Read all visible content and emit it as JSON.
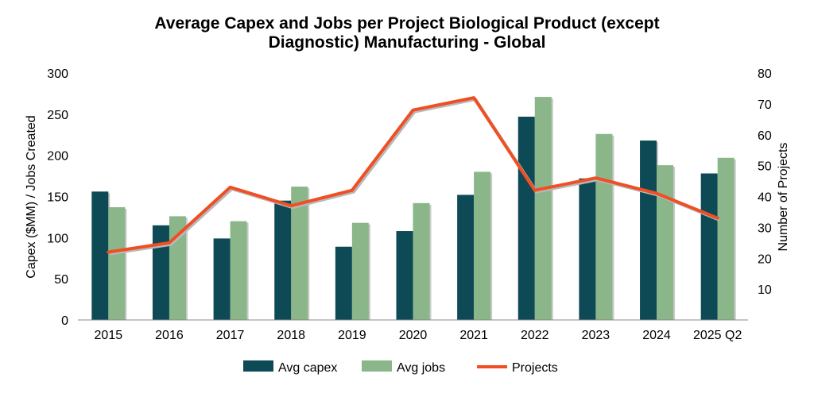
{
  "chart_data": {
    "type": "bar",
    "title_lines": [
      "Average Capex and Jobs per Project Biological Product (except",
      "Diagnostic) Manufacturing - Global"
    ],
    "categories": [
      "2015",
      "2016",
      "2017",
      "2018",
      "2019",
      "2020",
      "2021",
      "2022",
      "2023",
      "2024",
      "2025 Q2"
    ],
    "series": [
      {
        "name": "Avg capex",
        "kind": "bar",
        "axis": "left",
        "color": "#0d4a56",
        "values": [
          156,
          115,
          99,
          145,
          89,
          108,
          152,
          247,
          172,
          218,
          178
        ]
      },
      {
        "name": "Avg jobs",
        "kind": "bar",
        "axis": "left",
        "color": "#8ab68a",
        "values": [
          137,
          126,
          120,
          162,
          118,
          142,
          180,
          271,
          226,
          188,
          197
        ]
      },
      {
        "name": "Projects",
        "kind": "line",
        "axis": "right",
        "color": "#f04e23",
        "values": [
          22,
          25,
          43,
          37,
          42,
          68,
          72,
          42,
          46,
          41,
          33
        ]
      }
    ],
    "ylabel": "Capex ($MM) / Jobs Created",
    "y2label": "Number of  Projects",
    "ylim": [
      0,
      300
    ],
    "y2lim": [
      0,
      80
    ],
    "yticks": [
      "0",
      "50",
      "100",
      "150",
      "200",
      "250",
      "300"
    ],
    "y2ticks": [
      "10",
      "20",
      "30",
      "40",
      "50",
      "60",
      "70",
      "80"
    ],
    "grid": false,
    "legend_position": "bottom"
  }
}
